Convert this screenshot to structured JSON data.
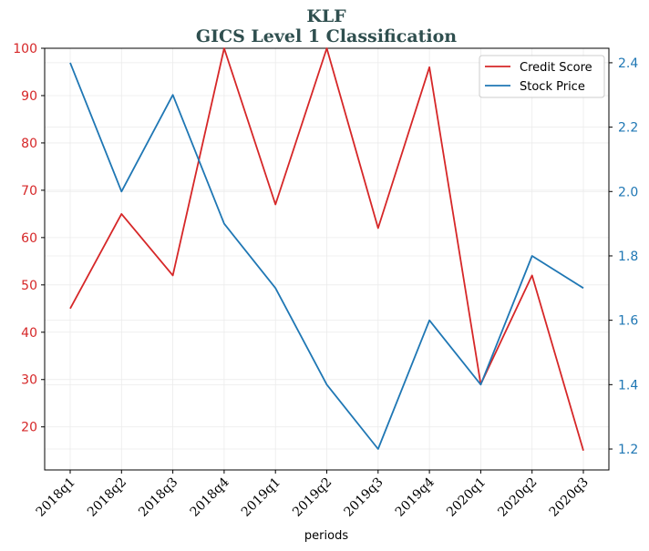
{
  "chart_data": {
    "type": "line",
    "title": "KLF",
    "subtitle": "GICS Level 1 Classification",
    "xlabel": "periods",
    "categories": [
      "2018q1",
      "2018q2",
      "2018q3",
      "2018q4",
      "2019q1",
      "2019q2",
      "2019q3",
      "2019q4",
      "2020q1",
      "2020q2",
      "2020q3"
    ],
    "y_left": {
      "lim": [
        10.9,
        100
      ],
      "ticks": [
        20,
        30,
        40,
        50,
        60,
        70,
        80,
        90,
        100
      ],
      "color": "#d62728"
    },
    "y_right": {
      "lim": [
        1.135,
        2.445
      ],
      "ticks": [
        1.2,
        1.4,
        1.6,
        1.8,
        2.0,
        2.2,
        2.4
      ],
      "color": "#1f77b4"
    },
    "series": [
      {
        "name": "Credit Score",
        "axis": "left",
        "color": "#d62728",
        "values": [
          45,
          65,
          52,
          100,
          67,
          100,
          62,
          96,
          29,
          52,
          15
        ]
      },
      {
        "name": "Stock Price",
        "axis": "right",
        "color": "#1f77b4",
        "values": [
          2.4,
          2.0,
          2.3,
          1.9,
          1.7,
          1.4,
          1.2,
          1.6,
          1.4,
          1.8,
          1.7
        ]
      }
    ],
    "grid": true,
    "legend": "top-right"
  }
}
